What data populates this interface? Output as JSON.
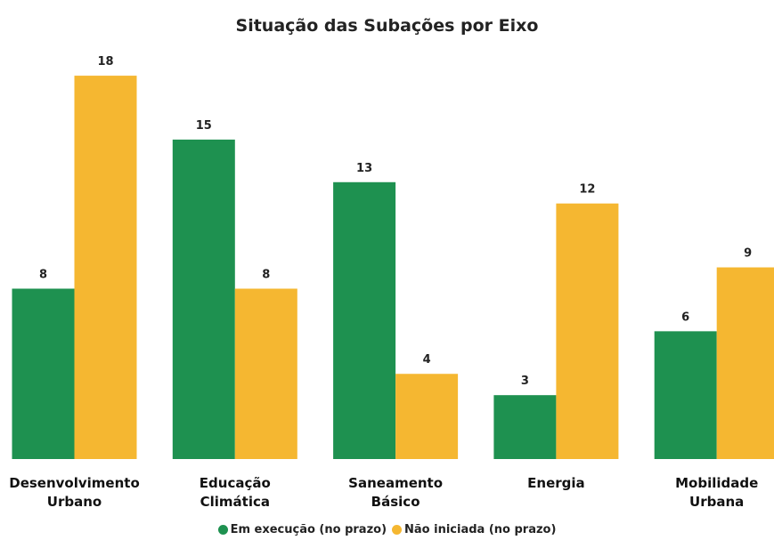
{
  "chart_data": {
    "type": "bar",
    "title": "Situação das Subações por Eixo",
    "categories": [
      "Desenvolvimento Urbano",
      "Educação Climática",
      "Saneamento Básico",
      "Energia",
      "Mobilidade Urbana"
    ],
    "series": [
      {
        "name": "Em execução (no prazo)",
        "color": "#1e9150",
        "values": [
          8,
          15,
          13,
          3,
          6
        ]
      },
      {
        "name": "Não iniciada (no prazo)",
        "color": "#f5b731",
        "values": [
          18,
          8,
          4,
          12,
          9
        ]
      }
    ]
  }
}
